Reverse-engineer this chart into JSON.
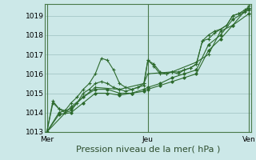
{
  "background_color": "#cce8e8",
  "grid_color": "#aacccc",
  "line_color": "#2d6a2d",
  "marker_color": "#2d6a2d",
  "ylim": [
    1013.0,
    1019.6
  ],
  "yticks": [
    1013,
    1014,
    1015,
    1016,
    1017,
    1018,
    1019
  ],
  "xlabel": "Pression niveau de la mer( hPa )",
  "xlabel_fontsize": 8,
  "xtick_labels": [
    "Mer",
    "Jeu",
    "Ven"
  ],
  "xtick_positions": [
    0.0,
    0.5,
    1.0
  ],
  "vline_positions": [
    0.0,
    0.5,
    1.0
  ],
  "series": [
    [
      0.0,
      1013.0
    ],
    [
      0.03,
      1014.6
    ],
    [
      0.06,
      1014.2
    ],
    [
      0.09,
      1014.1
    ],
    [
      0.12,
      1014.5
    ],
    [
      0.15,
      1014.8
    ],
    [
      0.18,
      1015.2
    ],
    [
      0.21,
      1015.5
    ],
    [
      0.24,
      1016.0
    ],
    [
      0.27,
      1016.8
    ],
    [
      0.3,
      1016.7
    ],
    [
      0.33,
      1016.2
    ],
    [
      0.36,
      1015.5
    ],
    [
      0.39,
      1015.3
    ],
    [
      0.42,
      1015.2
    ],
    [
      0.45,
      1015.3
    ],
    [
      0.48,
      1015.4
    ],
    [
      0.5,
      1016.7
    ],
    [
      0.53,
      1016.5
    ],
    [
      0.56,
      1016.1
    ],
    [
      0.59,
      1016.0
    ],
    [
      0.62,
      1016.1
    ],
    [
      0.65,
      1016.1
    ],
    [
      0.68,
      1016.2
    ],
    [
      0.71,
      1016.3
    ],
    [
      0.74,
      1016.5
    ],
    [
      0.77,
      1017.7
    ],
    [
      0.8,
      1018.0
    ],
    [
      0.83,
      1018.2
    ],
    [
      0.86,
      1018.3
    ],
    [
      0.89,
      1018.5
    ],
    [
      0.92,
      1019.0
    ],
    [
      0.95,
      1019.1
    ],
    [
      0.98,
      1019.3
    ],
    [
      1.0,
      1019.4
    ]
  ],
  "series2": [
    [
      0.0,
      1013.0
    ],
    [
      0.03,
      1014.5
    ],
    [
      0.06,
      1014.2
    ],
    [
      0.09,
      1014.0
    ],
    [
      0.12,
      1014.1
    ],
    [
      0.15,
      1014.5
    ],
    [
      0.18,
      1015.0
    ],
    [
      0.21,
      1015.2
    ],
    [
      0.24,
      1015.5
    ],
    [
      0.27,
      1015.6
    ],
    [
      0.3,
      1015.5
    ],
    [
      0.33,
      1015.3
    ],
    [
      0.36,
      1015.2
    ],
    [
      0.39,
      1015.1
    ],
    [
      0.42,
      1015.2
    ],
    [
      0.45,
      1015.3
    ],
    [
      0.48,
      1015.5
    ],
    [
      0.5,
      1016.7
    ],
    [
      0.53,
      1016.4
    ],
    [
      0.56,
      1016.0
    ],
    [
      0.59,
      1016.0
    ],
    [
      0.62,
      1016.1
    ],
    [
      0.65,
      1016.0
    ],
    [
      0.68,
      1016.2
    ],
    [
      0.71,
      1016.3
    ],
    [
      0.74,
      1016.5
    ],
    [
      0.77,
      1017.7
    ],
    [
      0.8,
      1017.8
    ],
    [
      0.83,
      1018.1
    ],
    [
      0.86,
      1018.3
    ],
    [
      0.89,
      1018.5
    ],
    [
      0.92,
      1019.0
    ],
    [
      0.95,
      1019.1
    ],
    [
      0.98,
      1019.2
    ],
    [
      1.0,
      1019.4
    ]
  ],
  "series3": [
    [
      0.0,
      1013.0
    ],
    [
      0.06,
      1014.0
    ],
    [
      0.12,
      1014.2
    ],
    [
      0.18,
      1014.8
    ],
    [
      0.24,
      1015.2
    ],
    [
      0.3,
      1015.2
    ],
    [
      0.36,
      1015.0
    ],
    [
      0.42,
      1015.0
    ],
    [
      0.48,
      1015.2
    ],
    [
      0.5,
      1015.3
    ],
    [
      0.56,
      1015.5
    ],
    [
      0.62,
      1015.8
    ],
    [
      0.68,
      1016.0
    ],
    [
      0.74,
      1016.2
    ],
    [
      0.8,
      1017.5
    ],
    [
      0.86,
      1018.0
    ],
    [
      0.92,
      1018.8
    ],
    [
      1.0,
      1019.3
    ]
  ],
  "series4": [
    [
      0.0,
      1013.0
    ],
    [
      0.06,
      1013.9
    ],
    [
      0.12,
      1014.0
    ],
    [
      0.18,
      1014.5
    ],
    [
      0.24,
      1015.0
    ],
    [
      0.3,
      1015.0
    ],
    [
      0.36,
      1014.9
    ],
    [
      0.42,
      1015.0
    ],
    [
      0.48,
      1015.1
    ],
    [
      0.5,
      1015.2
    ],
    [
      0.56,
      1015.4
    ],
    [
      0.62,
      1015.6
    ],
    [
      0.68,
      1015.8
    ],
    [
      0.74,
      1016.0
    ],
    [
      0.8,
      1017.2
    ],
    [
      0.86,
      1017.8
    ],
    [
      0.92,
      1018.5
    ],
    [
      1.0,
      1019.1
    ]
  ],
  "series5": [
    [
      0.0,
      1013.0
    ],
    [
      0.12,
      1014.3
    ],
    [
      0.24,
      1015.3
    ],
    [
      0.36,
      1015.2
    ],
    [
      0.48,
      1015.5
    ],
    [
      0.5,
      1016.0
    ],
    [
      0.62,
      1016.1
    ],
    [
      0.74,
      1016.6
    ],
    [
      0.8,
      1017.0
    ],
    [
      0.86,
      1018.2
    ],
    [
      0.92,
      1018.5
    ],
    [
      1.0,
      1019.5
    ]
  ]
}
